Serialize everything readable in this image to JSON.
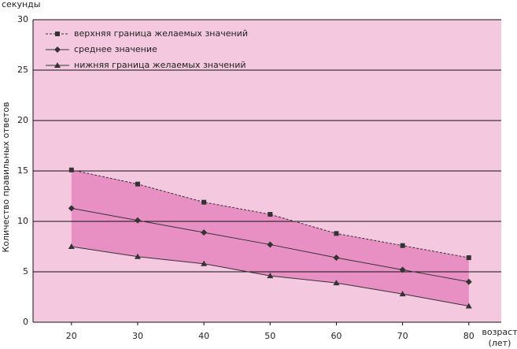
{
  "chart_data": {
    "type": "line",
    "y_unit_label": "секунды",
    "y_label": "Количество правильных ответов",
    "x_label_lines": [
      "возраст",
      "(лет)"
    ],
    "x": [
      20,
      30,
      40,
      50,
      60,
      70,
      80
    ],
    "series": [
      {
        "name": "верхняя граница желаемых значений",
        "color": "#333333",
        "dash": true,
        "marker": "square",
        "values": [
          15.1,
          13.7,
          11.9,
          10.7,
          8.8,
          7.6,
          6.4
        ]
      },
      {
        "name": "среднее значение",
        "color": "#333333",
        "dash": false,
        "marker": "diamond",
        "values": [
          11.3,
          10.1,
          8.9,
          7.7,
          6.4,
          5.2,
          4.0
        ]
      },
      {
        "name": "нижняя граница желаемых значений",
        "color": "#333333",
        "dash": false,
        "marker": "triangle",
        "values": [
          7.5,
          6.5,
          5.8,
          4.6,
          3.9,
          2.8,
          1.6
        ]
      }
    ],
    "band_color": "#e890c4",
    "background": "#f4c8df",
    "xlim": [
      14.2,
      84.9
    ],
    "xticks": [
      20,
      30,
      40,
      50,
      60,
      70,
      80
    ],
    "ylim": [
      0,
      30
    ],
    "yticks": [
      0,
      5,
      10,
      15,
      20,
      25,
      30
    ],
    "grid": true,
    "legend": "upper left"
  }
}
